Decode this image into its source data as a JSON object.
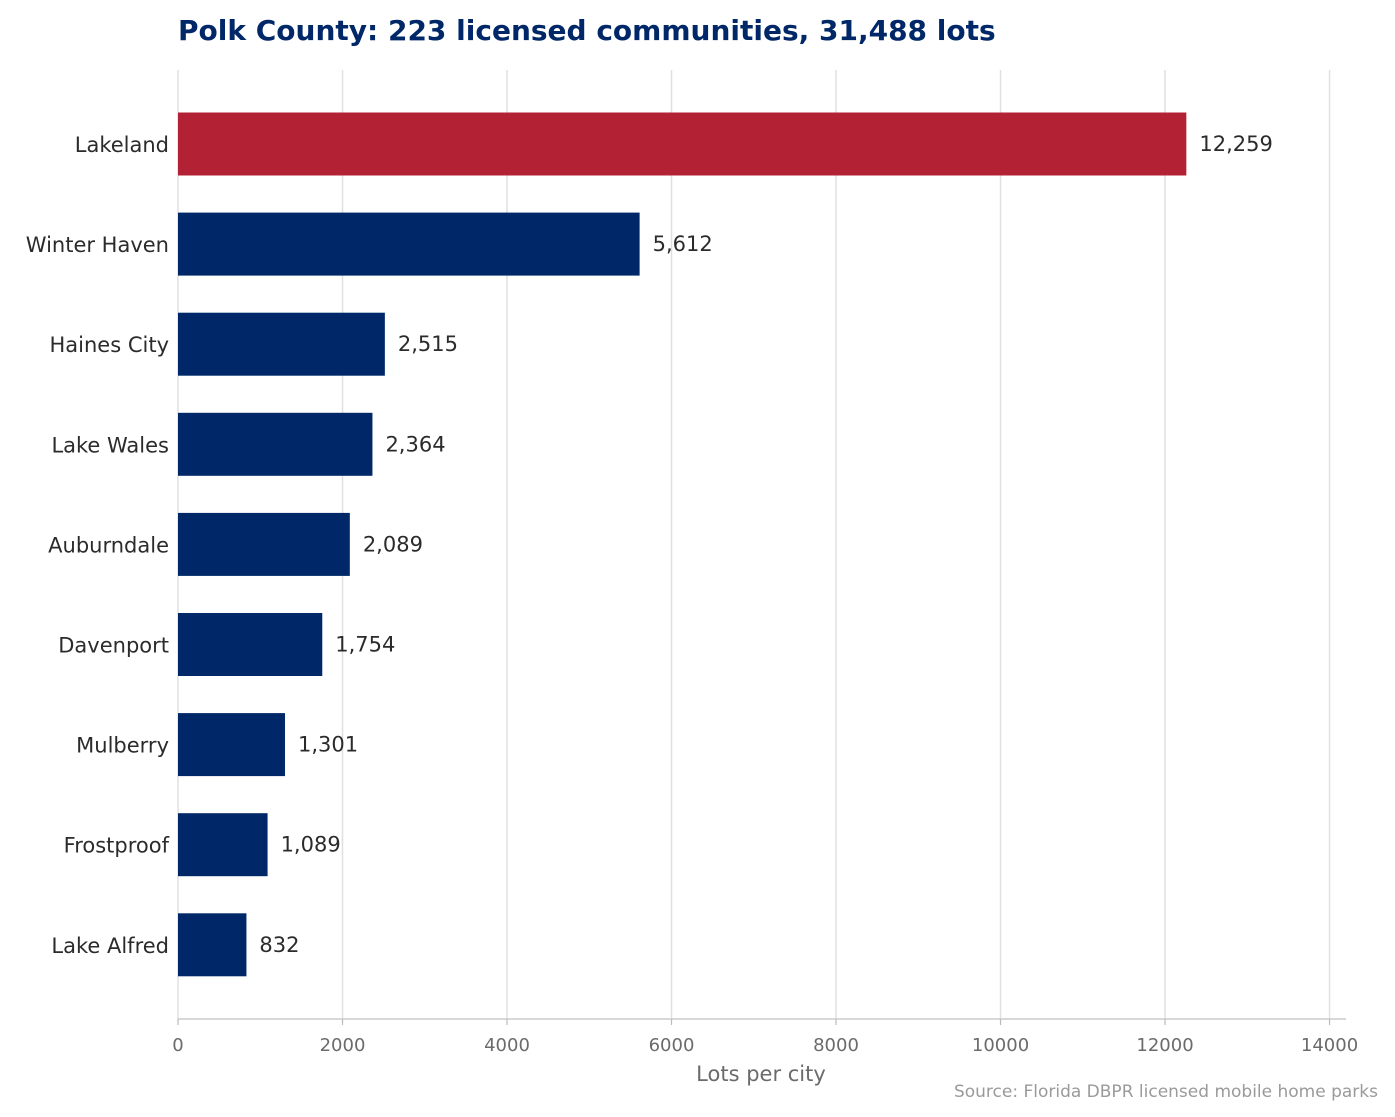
{
  "chart_data": {
    "type": "bar",
    "orientation": "horizontal",
    "title": "Polk County: 223 licensed communities, 31,488 lots",
    "xlabel": "Lots per city",
    "ylabel": "",
    "source": "Source: Florida DBPR licensed mobile home parks",
    "categories": [
      "Lakeland",
      "Winter Haven",
      "Haines City",
      "Lake Wales",
      "Auburndale",
      "Davenport",
      "Mulberry",
      "Frostproof",
      "Lake Alfred"
    ],
    "values": [
      12259,
      5612,
      2515,
      2364,
      2089,
      1754,
      1301,
      1089,
      832
    ],
    "value_labels": [
      "12,259",
      "5,612",
      "2,515",
      "2,364",
      "2,089",
      "1,754",
      "1,301",
      "1,089",
      "832"
    ],
    "highlight_index": 0,
    "colors": {
      "highlight": "#B22234",
      "default": "#002868",
      "grid": "#e0e0e0",
      "axis": "#cccccc"
    },
    "xlim": [
      0,
      14200
    ],
    "xticks": [
      0,
      2000,
      4000,
      6000,
      8000,
      10000,
      12000,
      14000
    ],
    "xtick_labels": [
      "0",
      "2000",
      "4000",
      "6000",
      "8000",
      "10000",
      "12000",
      "14000"
    ],
    "grid": true,
    "grid_axis": "x",
    "legend": "none"
  }
}
